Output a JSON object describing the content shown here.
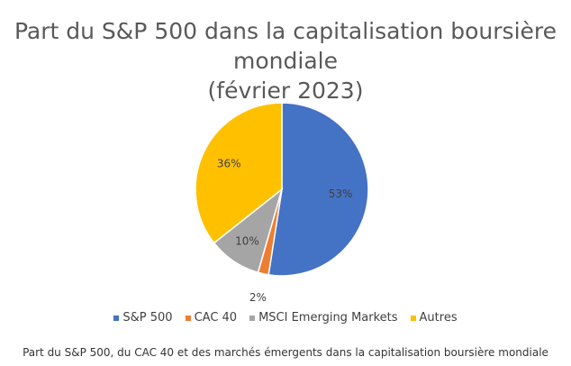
{
  "chart_data": {
    "type": "pie",
    "title_line1": "Part du S&P 500 dans la capitalisation boursière mondiale",
    "title_line2": "(février 2023)",
    "categories": [
      "S&P 500",
      "CAC 40",
      "MSCI Emerging Markets",
      "Autres"
    ],
    "values": [
      53,
      2,
      10,
      36
    ],
    "labels": [
      "53%",
      "2%",
      "10%",
      "36%"
    ],
    "colors": [
      "#4472C4",
      "#ED7D31",
      "#A5A5A5",
      "#FFC000"
    ],
    "legend_position": "bottom"
  },
  "caption": "Part du S&P 500, du CAC 40 et des marchés émergents dans la capitalisation boursière mondiale"
}
